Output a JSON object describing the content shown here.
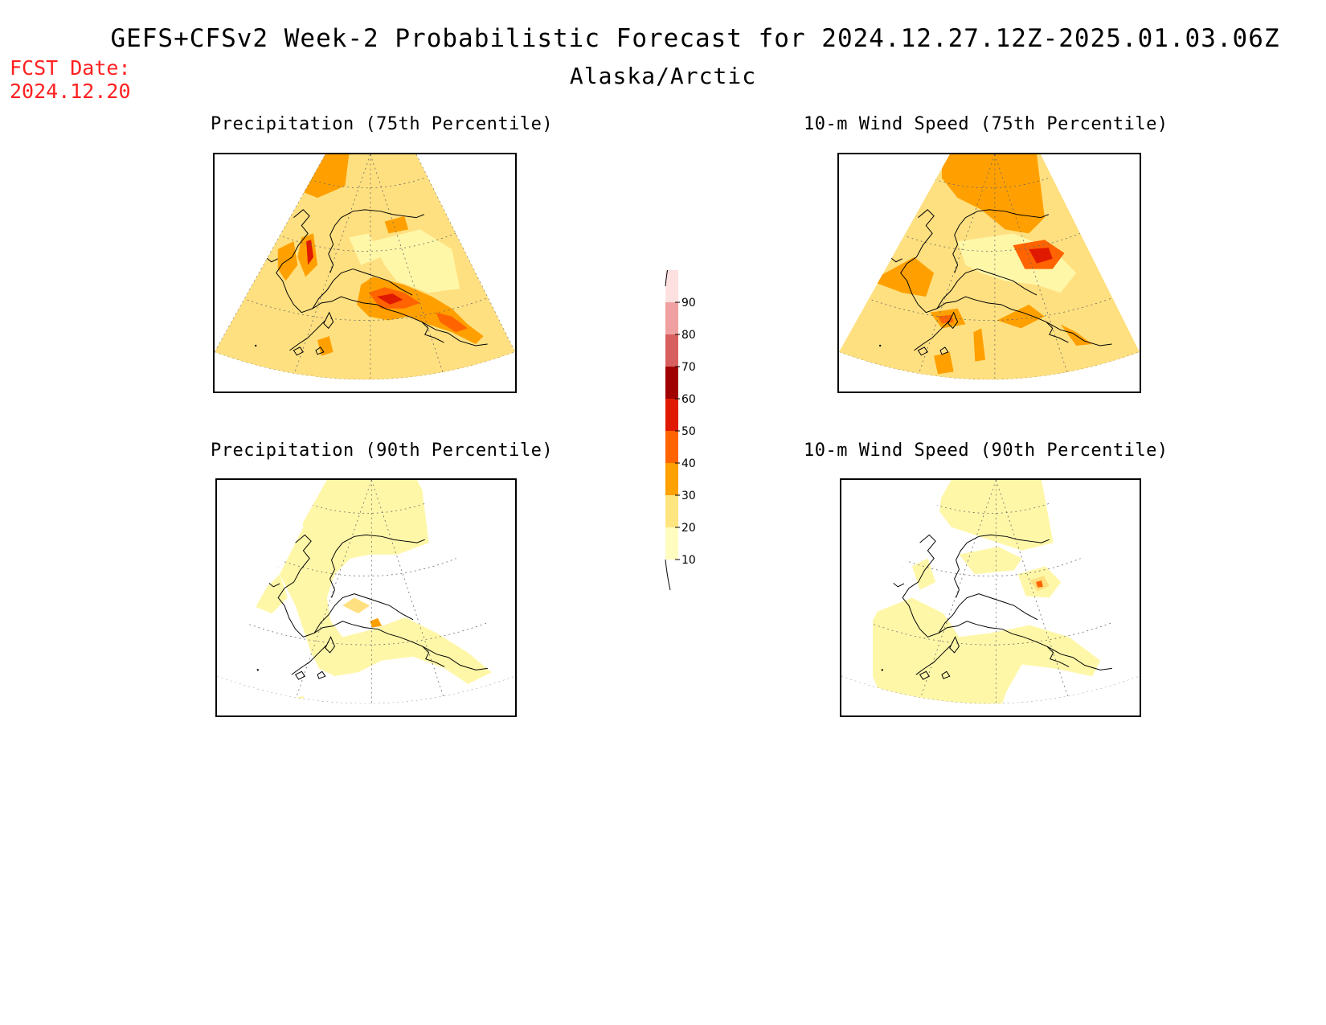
{
  "header": {
    "title": "GEFS+CFSv2 Week-2 Probabilistic Forecast for 2024.12.27.12Z-2025.01.03.06Z",
    "subtitle": "Alaska/Arctic",
    "fcst_label": "FCST Date:",
    "fcst_date": "2024.12.20"
  },
  "panels": [
    {
      "id": "precip75",
      "title": "Precipitation (75th Percentile)"
    },
    {
      "id": "wind75",
      "title": "10-m Wind Speed (75th Percentile)"
    },
    {
      "id": "precip90",
      "title": "Precipitation (90th Percentile)"
    },
    {
      "id": "wind90",
      "title": "10-m Wind Speed (90th Percentile)"
    }
  ],
  "colorbar": {
    "levels": [
      "10",
      "20",
      "30",
      "40",
      "50",
      "60",
      "70",
      "80",
      "90"
    ],
    "colors": [
      "#fffcc0",
      "#ffe580",
      "#ffa100",
      "#ff6400",
      "#e01a00",
      "#a00000",
      "#d85f5f",
      "#f0a0a0",
      "#fde0e0"
    ]
  },
  "colors": {
    "fcst_text": "#ff2020",
    "light_yellow": "#fff7a8",
    "yellow": "#ffe080",
    "orange": "#ffa000",
    "dark_orange": "#ff6400",
    "red": "#e01a00"
  }
}
